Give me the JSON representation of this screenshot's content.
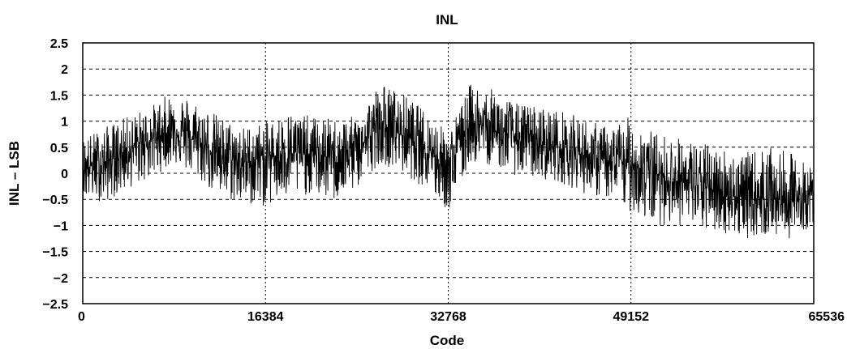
{
  "chart_data": {
    "type": "line",
    "title": "INL",
    "xlabel": "Code",
    "ylabel": "INL – LSB",
    "xlim": [
      0,
      65536
    ],
    "ylim": [
      -2.5,
      2.5
    ],
    "x_ticks": [
      {
        "value": 0,
        "label": "0"
      },
      {
        "value": 16384,
        "label": "16384"
      },
      {
        "value": 32768,
        "label": "32768"
      },
      {
        "value": 49152,
        "label": "49152"
      },
      {
        "value": 65536,
        "label": "65536"
      }
    ],
    "y_ticks": [
      {
        "value": 2.5,
        "label": "2.5"
      },
      {
        "value": 2,
        "label": "2"
      },
      {
        "value": 1.5,
        "label": "1.5"
      },
      {
        "value": 1,
        "label": "1"
      },
      {
        "value": 0.5,
        "label": "0.5"
      },
      {
        "value": 0,
        "label": "0"
      },
      {
        "value": -0.5,
        "label": "−0.5"
      },
      {
        "value": -1,
        "label": "−1"
      },
      {
        "value": -1.5,
        "label": "−1.5"
      },
      {
        "value": -2,
        "label": "−2"
      },
      {
        "value": -2.5,
        "label": "−2.5"
      }
    ],
    "grid": true,
    "line_color": "#000000",
    "series": [
      {
        "x": [
          0,
          2048,
          4096,
          6144,
          8192,
          10240,
          12288,
          14336,
          16384,
          18432,
          20480,
          22528,
          24576,
          26624,
          28672,
          30720,
          32768,
          34816,
          36864,
          38912,
          40960,
          43008,
          45056,
          47104,
          49152,
          51200,
          53248,
          55296,
          57344,
          59392,
          61440,
          63488,
          65536
        ],
        "center": [
          0.1,
          0.2,
          0.45,
          0.65,
          0.85,
          0.6,
          0.35,
          0.2,
          0.3,
          0.4,
          0.35,
          0.3,
          0.45,
          0.9,
          0.75,
          0.55,
          0.1,
          1.0,
          0.8,
          0.7,
          0.55,
          0.5,
          0.35,
          0.2,
          0.2,
          0.0,
          -0.15,
          -0.25,
          -0.35,
          -0.5,
          -0.45,
          -0.55,
          -0.4
        ],
        "upper": [
          0.7,
          0.9,
          1.1,
          1.3,
          1.6,
          1.4,
          1.1,
          0.9,
          1.0,
          1.2,
          1.1,
          1.05,
          1.1,
          1.75,
          1.55,
          1.2,
          0.8,
          1.75,
          1.6,
          1.35,
          1.3,
          1.2,
          1.05,
          0.9,
          1.1,
          0.8,
          0.7,
          0.6,
          0.5,
          0.4,
          0.5,
          0.4,
          0.1
        ],
        "lower": [
          -0.5,
          -0.55,
          -0.3,
          -0.1,
          0.2,
          -0.1,
          -0.5,
          -0.6,
          -0.65,
          -0.5,
          -0.4,
          -0.55,
          -0.3,
          0.2,
          0.0,
          -0.3,
          -0.75,
          0.2,
          0.15,
          -0.05,
          -0.1,
          -0.2,
          -0.4,
          -0.5,
          -0.75,
          -1.0,
          -1.0,
          -1.1,
          -1.15,
          -1.25,
          -1.2,
          -1.25,
          -1.0
        ]
      }
    ]
  }
}
